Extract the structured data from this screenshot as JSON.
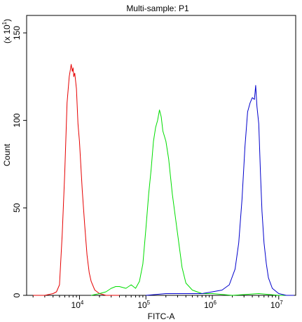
{
  "chart_data": {
    "type": "line",
    "title": "Multi-sample: P1",
    "xlabel": "FITC-A",
    "ylabel": "Count",
    "y_multiplier_label": "(x 10",
    "y_multiplier_exp": "1",
    "y_multiplier_close": ")",
    "x_scale": "log",
    "xlim": [
      1600,
      18000000
    ],
    "ylim": [
      0,
      160
    ],
    "y_ticks": [
      0,
      50,
      100,
      150
    ],
    "y_tick_labels": [
      "0",
      "50",
      "100",
      "150"
    ],
    "x_ticks": [
      10000,
      100000,
      1000000,
      10000000
    ],
    "x_tick_labels": [
      {
        "base": "10",
        "exp": "4"
      },
      {
        "base": "10",
        "exp": "5"
      },
      {
        "base": "10",
        "exp": "6"
      },
      {
        "base": "10",
        "exp": "7"
      }
    ],
    "grid": false,
    "series": [
      {
        "color": "#e60000",
        "x": [
          2000,
          3000,
          4000,
          4500,
          5000,
          5500,
          6000,
          6500,
          7000,
          7500,
          7800,
          8000,
          8200,
          8500,
          9000,
          9500,
          10000,
          11000,
          12000,
          13000,
          14000,
          15000,
          17000,
          20000,
          25000,
          30000,
          40000
        ],
        "y": [
          0,
          0,
          1,
          2,
          6,
          35,
          70,
          110,
          125,
          132,
          128,
          130,
          125,
          127,
          118,
          98,
          88,
          60,
          40,
          23,
          13,
          8,
          3,
          1,
          0,
          0,
          0
        ]
      },
      {
        "color": "#00dd00",
        "x": [
          15000,
          20000,
          25000,
          30000,
          35000,
          40000,
          50000,
          60000,
          70000,
          80000,
          90000,
          100000,
          110000,
          120000,
          130000,
          140000,
          150000,
          160000,
          170000,
          180000,
          200000,
          220000,
          250000,
          300000,
          350000,
          400000,
          500000,
          700000,
          1000000,
          2000000,
          5000000,
          10000000,
          15000000
        ],
        "y": [
          0,
          1,
          2,
          4,
          5,
          5,
          4,
          6,
          4,
          8,
          18,
          38,
          58,
          72,
          88,
          96,
          100,
          106,
          102,
          94,
          88,
          78,
          58,
          35,
          16,
          7,
          3,
          1,
          1,
          0,
          1,
          0,
          0
        ]
      },
      {
        "color": "#0000cc",
        "x": [
          100000,
          200000,
          400000,
          700000,
          1000000,
          1400000,
          1800000,
          2200000,
          2500000,
          2800000,
          3100000,
          3400000,
          3700000,
          4000000,
          4300000,
          4500000,
          4700000,
          5000000,
          5300000,
          5600000,
          6000000,
          6500000,
          7000000,
          8000000,
          10000000,
          13000000,
          17000000
        ],
        "y": [
          0,
          1,
          1,
          1,
          2,
          3,
          6,
          15,
          30,
          55,
          85,
          105,
          110,
          113,
          112,
          120,
          108,
          98,
          70,
          48,
          30,
          18,
          10,
          4,
          1,
          0,
          0
        ]
      }
    ]
  }
}
